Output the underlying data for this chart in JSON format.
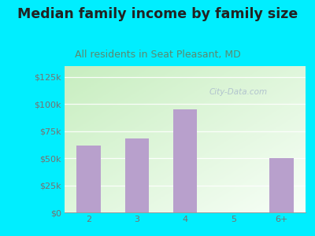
{
  "title": "Median family income by family size",
  "subtitle": "All residents in Seat Pleasant, MD",
  "categories": [
    "2",
    "3",
    "4",
    "5",
    "6+"
  ],
  "values": [
    62000,
    68000,
    95000,
    0,
    50000
  ],
  "bar_color": "#b8a0cc",
  "bg_outer": "#00eeff",
  "bg_chart_top_left": "#c8eec0",
  "bg_chart_bottom_right": "#f8fff8",
  "title_color": "#222222",
  "subtitle_color": "#5a8a70",
  "axis_label_color": "#7a7070",
  "yticks": [
    0,
    25000,
    50000,
    75000,
    100000,
    125000
  ],
  "ytick_labels": [
    "$0",
    "$25k",
    "$50k",
    "$75k",
    "$100k",
    "$125k"
  ],
  "ylim": [
    0,
    135000
  ],
  "watermark": "City-Data.com",
  "title_fontsize": 12.5,
  "subtitle_fontsize": 9,
  "tick_fontsize": 8
}
